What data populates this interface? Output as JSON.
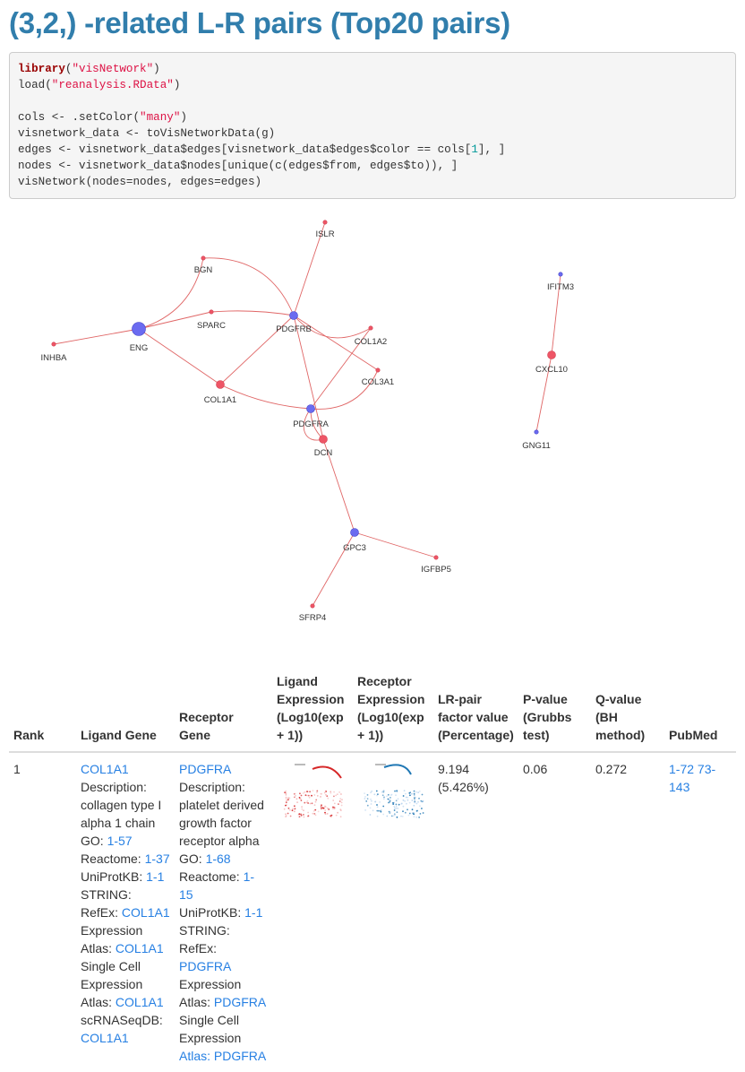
{
  "title": "(3,2,) -related L-R pairs (Top20 pairs)",
  "code": {
    "lines": [
      [
        {
          "t": "library",
          "c": "kw"
        },
        {
          "t": "("
        },
        {
          "t": "\"visNetwork\"",
          "c": "st"
        },
        {
          "t": ")"
        }
      ],
      [
        {
          "t": "load("
        },
        {
          "t": "\"reanalysis.RData\"",
          "c": "st"
        },
        {
          "t": ")"
        }
      ],
      [],
      [
        {
          "t": "cols <- .setColor("
        },
        {
          "t": "\"many\"",
          "c": "st"
        },
        {
          "t": ")"
        }
      ],
      [
        {
          "t": "visnetwork_data <- toVisNetworkData(g)"
        }
      ],
      [
        {
          "t": "edges <- visnetwork_data$edges[visnetwork_data$edges$color == cols["
        },
        {
          "t": "1",
          "c": "num"
        },
        {
          "t": "], ]"
        }
      ],
      [
        {
          "t": "nodes <- visnetwork_data$nodes[unique(c(edges$from, edges$to)), ]"
        }
      ],
      [
        {
          "t": "visNetwork(nodes=nodes, edges=edges)"
        }
      ]
    ]
  },
  "network": {
    "edge_color": "#e06666",
    "ligand_color": "#ee5566",
    "receptor_color": "#6b6bf0",
    "nodes": [
      {
        "id": "ISLR",
        "label": "ISLR",
        "type": "ligand",
        "size": "small"
      },
      {
        "id": "BGN",
        "label": "BGN",
        "type": "ligand",
        "size": "small"
      },
      {
        "id": "SPARC",
        "label": "SPARC",
        "type": "ligand",
        "size": "small"
      },
      {
        "id": "ENG",
        "label": "ENG",
        "type": "receptor",
        "size": "large"
      },
      {
        "id": "INHBA",
        "label": "INHBA",
        "type": "ligand",
        "size": "small"
      },
      {
        "id": "PDGFRB",
        "label": "PDGFRB",
        "type": "receptor",
        "size": "medium"
      },
      {
        "id": "COL1A2",
        "label": "COL1A2",
        "type": "ligand",
        "size": "small"
      },
      {
        "id": "COL3A1",
        "label": "COL3A1",
        "type": "ligand",
        "size": "small"
      },
      {
        "id": "COL1A1",
        "label": "COL1A1",
        "type": "ligand",
        "size": "medium"
      },
      {
        "id": "PDGFRA",
        "label": "PDGFRA",
        "type": "receptor",
        "size": "medium"
      },
      {
        "id": "DCN",
        "label": "DCN",
        "type": "ligand",
        "size": "medium"
      },
      {
        "id": "GPC3",
        "label": "GPC3",
        "type": "receptor",
        "size": "medium"
      },
      {
        "id": "IGFBP5",
        "label": "IGFBP5",
        "type": "ligand",
        "size": "small"
      },
      {
        "id": "SFRP4",
        "label": "SFRP4",
        "type": "ligand",
        "size": "small"
      },
      {
        "id": "IFITM3",
        "label": "IFITM3",
        "type": "receptor",
        "size": "small"
      },
      {
        "id": "CXCL10",
        "label": "CXCL10",
        "type": "ligand",
        "size": "medium"
      },
      {
        "id": "GNG11",
        "label": "GNG11",
        "type": "receptor",
        "size": "small"
      }
    ],
    "edges": [
      {
        "from": "ISLR",
        "to": "PDGFRB"
      },
      {
        "from": "BGN",
        "to": "ENG"
      },
      {
        "from": "BGN",
        "to": "PDGFRB"
      },
      {
        "from": "SPARC",
        "to": "ENG"
      },
      {
        "from": "SPARC",
        "to": "PDGFRB"
      },
      {
        "from": "INHBA",
        "to": "ENG"
      },
      {
        "from": "COL1A1",
        "to": "ENG"
      },
      {
        "from": "COL1A1",
        "to": "PDGFRB"
      },
      {
        "from": "COL1A1",
        "to": "PDGFRA"
      },
      {
        "from": "COL1A2",
        "to": "PDGFRB"
      },
      {
        "from": "COL1A2",
        "to": "PDGFRA"
      },
      {
        "from": "COL3A1",
        "to": "PDGFRB"
      },
      {
        "from": "COL3A1",
        "to": "PDGFRA"
      },
      {
        "from": "PDGFRB",
        "to": "DCN"
      },
      {
        "from": "PDGFRA",
        "to": "DCN"
      },
      {
        "from": "DCN",
        "to": "GPC3"
      },
      {
        "from": "IGFBP5",
        "to": "GPC3"
      },
      {
        "from": "SFRP4",
        "to": "GPC3"
      },
      {
        "from": "IFITM3",
        "to": "CXCL10"
      },
      {
        "from": "CXCL10",
        "to": "GNG11"
      }
    ]
  },
  "table": {
    "headers": {
      "rank": "Rank",
      "ligand": "Ligand Gene",
      "receptor": "Receptor Gene",
      "lig_expr": "Ligand Expression (Log10(exp + 1))",
      "rec_expr": "Receptor Expression (Log10(exp + 1))",
      "factor": "LR-pair factor value (Percentage)",
      "pval": "P-value (Grubbs test)",
      "qval": "Q-value (BH method)",
      "pubmed": "PubMed"
    },
    "row1": {
      "rank": "1",
      "ligand": {
        "gene": "COL1A1",
        "desc_label": "Description:",
        "desc": "collagen type I alpha 1 chain",
        "go_label": "GO:",
        "go": "1-57",
        "reactome_label": "Reactome:",
        "reactome": "1-37",
        "uniprot_label": "UniProtKB:",
        "uniprot": "1-1",
        "string_label": "STRING:",
        "refex_label": "RefEx:",
        "refex": "COL1A1",
        "ea_label": "Expression Atlas:",
        "ea": "COL1A1",
        "scea_label": "Single Cell Expression Atlas:",
        "scea": "COL1A1",
        "scrna_label": "scRNASeqDB:",
        "scrna": "COL1A1"
      },
      "receptor": {
        "gene": "PDGFRA",
        "desc_label": "Description:",
        "desc": "platelet derived growth factor receptor alpha",
        "go_label": "GO:",
        "go": "1-68",
        "reactome_label": "Reactome:",
        "reactome": "1-15",
        "uniprot_label": "UniProtKB:",
        "uniprot": "1-1",
        "string_label": "STRING:",
        "refex_label": "RefEx:",
        "refex": "PDGFRA",
        "ea_label": "Expression Atlas:",
        "ea": "PDGFRA",
        "scea_label": "Single Cell Expression",
        "scea_cut": "Atlas: PDGFRA"
      },
      "factor": "9.194 (5.426%)",
      "pval": "0.06",
      "qval": "0.272",
      "pubmed": [
        "1-72",
        "73-143"
      ],
      "heat_colors": {
        "ligand": "#d62728",
        "receptor": "#1f77b4"
      }
    }
  }
}
